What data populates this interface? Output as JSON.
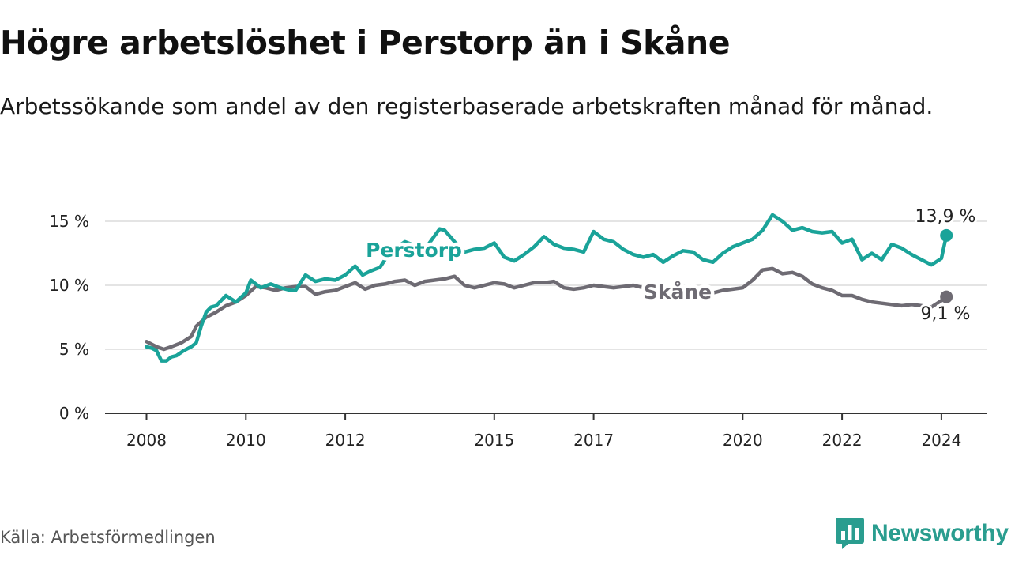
{
  "header": {
    "title": "Högre arbetslöshet i Perstorp än i Skåne",
    "subtitle": "Arbetssökande som andel av den registerbaserade arbetskraften månad för månad."
  },
  "footer": {
    "source": "Källa: Arbetsförmedlingen",
    "brand": "Newsworthy"
  },
  "colors": {
    "perstorp": "#1aa399",
    "skane": "#6e6b73",
    "grid": "#dcdcdc",
    "axis": "#333333",
    "brand": "#2a9d8f"
  },
  "chart_data": {
    "type": "line",
    "title": "Högre arbetslöshet i Perstorp än i Skåne",
    "subtitle": "Arbetssökande som andel av den registerbaserade arbetskraften månad för månad.",
    "xlabel": "",
    "ylabel": "",
    "xlim": [
      2008,
      2025
    ],
    "ylim": [
      0,
      15
    ],
    "grid": true,
    "yticks": [
      0,
      5,
      10,
      15
    ],
    "ytick_labels": [
      "0 %",
      "5 %",
      "10 %",
      "15 %"
    ],
    "xticks": [
      2008,
      2010,
      2012,
      2015,
      2017,
      2020,
      2022,
      2024
    ],
    "xtick_labels": [
      "2008",
      "2010",
      "2012",
      "2015",
      "2017",
      "2020",
      "2022",
      "2024"
    ],
    "series": [
      {
        "name": "Perstorp",
        "label": "Perstorp",
        "color": "#1aa399",
        "end_label": "13,9 %",
        "x": [
          2008.0,
          2008.1,
          2008.2,
          2008.3,
          2008.4,
          2008.5,
          2008.6,
          2008.75,
          2008.9,
          2009.0,
          2009.1,
          2009.2,
          2009.3,
          2009.4,
          2009.6,
          2009.8,
          2010.0,
          2010.1,
          2010.3,
          2010.5,
          2010.7,
          2010.9,
          2011.0,
          2011.2,
          2011.4,
          2011.6,
          2011.8,
          2012.0,
          2012.2,
          2012.35,
          2012.5,
          2012.7,
          2012.9,
          2013.2,
          2013.6,
          2013.9,
          2014.0,
          2014.2,
          2014.4,
          2014.6,
          2014.8,
          2015.0,
          2015.2,
          2015.4,
          2015.6,
          2015.8,
          2016.0,
          2016.2,
          2016.4,
          2016.6,
          2016.8,
          2017.0,
          2017.2,
          2017.4,
          2017.6,
          2017.8,
          2018.0,
          2018.2,
          2018.4,
          2018.6,
          2018.8,
          2019.0,
          2019.2,
          2019.4,
          2019.6,
          2019.8,
          2020.0,
          2020.2,
          2020.4,
          2020.6,
          2020.8,
          2021.0,
          2021.2,
          2021.4,
          2021.6,
          2021.8,
          2022.0,
          2022.2,
          2022.4,
          2022.6,
          2022.8,
          2023.0,
          2023.2,
          2023.4,
          2023.5,
          2023.6,
          2023.8,
          2024.0,
          2024.1
        ],
        "values": [
          5.2,
          5.1,
          4.9,
          4.1,
          4.1,
          4.4,
          4.5,
          4.9,
          5.2,
          5.5,
          6.8,
          7.9,
          8.3,
          8.4,
          9.2,
          8.7,
          9.4,
          10.4,
          9.8,
          10.1,
          9.8,
          9.6,
          9.6,
          10.8,
          10.3,
          10.5,
          10.4,
          10.8,
          11.5,
          10.8,
          11.1,
          11.4,
          12.6,
          13.4,
          12.8,
          14.4,
          14.3,
          13.4,
          12.6,
          12.8,
          12.9,
          13.3,
          12.2,
          11.9,
          12.4,
          13.0,
          13.8,
          13.2,
          12.9,
          12.8,
          12.6,
          14.2,
          13.6,
          13.4,
          12.8,
          12.4,
          12.2,
          12.4,
          11.8,
          12.3,
          12.7,
          12.6,
          12.0,
          11.8,
          12.5,
          13.0,
          13.3,
          13.6,
          14.3,
          15.5,
          15.0,
          14.3,
          14.5,
          14.2,
          14.1,
          14.2,
          13.3,
          13.6,
          12.0,
          12.5,
          12.0,
          13.2,
          12.9,
          12.4,
          12.2,
          12.0,
          11.6,
          12.1,
          13.9
        ]
      },
      {
        "name": "Skåne",
        "label": "Skåne",
        "color": "#6e6b73",
        "end_label": "9,1 %",
        "x": [
          2008.0,
          2008.1,
          2008.2,
          2008.35,
          2008.5,
          2008.7,
          2008.9,
          2009.0,
          2009.2,
          2009.4,
          2009.6,
          2009.8,
          2010.0,
          2010.2,
          2010.4,
          2010.6,
          2010.8,
          2011.0,
          2011.2,
          2011.4,
          2011.6,
          2011.8,
          2012.0,
          2012.2,
          2012.4,
          2012.6,
          2012.8,
          2013.0,
          2013.2,
          2013.4,
          2013.6,
          2013.8,
          2014.0,
          2014.2,
          2014.4,
          2014.6,
          2014.8,
          2015.0,
          2015.2,
          2015.4,
          2015.6,
          2015.8,
          2016.0,
          2016.2,
          2016.4,
          2016.6,
          2016.8,
          2017.0,
          2017.2,
          2017.4,
          2017.6,
          2017.8,
          2018.0,
          2018.2,
          2018.4,
          2018.6,
          2018.8,
          2019.0,
          2019.2,
          2019.4,
          2019.6,
          2019.8,
          2020.0,
          2020.2,
          2020.4,
          2020.6,
          2020.8,
          2021.0,
          2021.2,
          2021.4,
          2021.6,
          2021.8,
          2022.0,
          2022.2,
          2022.4,
          2022.6,
          2022.8,
          2023.0,
          2023.2,
          2023.4,
          2023.6,
          2023.8,
          2024.0,
          2024.1
        ],
        "values": [
          5.6,
          5.4,
          5.2,
          5.0,
          5.2,
          5.5,
          6.0,
          6.8,
          7.5,
          7.9,
          8.4,
          8.7,
          9.2,
          9.9,
          9.8,
          9.6,
          9.8,
          9.9,
          9.9,
          9.3,
          9.5,
          9.6,
          9.9,
          10.2,
          9.7,
          10.0,
          10.1,
          10.3,
          10.4,
          10.0,
          10.3,
          10.4,
          10.5,
          10.7,
          10.0,
          9.8,
          10.0,
          10.2,
          10.1,
          9.8,
          10.0,
          10.2,
          10.2,
          10.3,
          9.8,
          9.7,
          9.8,
          10.0,
          9.9,
          9.8,
          9.9,
          10.0,
          9.8,
          9.7,
          9.6,
          9.4,
          9.3,
          9.4,
          9.4,
          9.4,
          9.6,
          9.7,
          9.8,
          10.4,
          11.2,
          11.3,
          10.9,
          11.0,
          10.7,
          10.1,
          9.8,
          9.6,
          9.2,
          9.2,
          8.9,
          8.7,
          8.6,
          8.5,
          8.4,
          8.5,
          8.4,
          8.3,
          8.8,
          9.1
        ]
      }
    ]
  }
}
